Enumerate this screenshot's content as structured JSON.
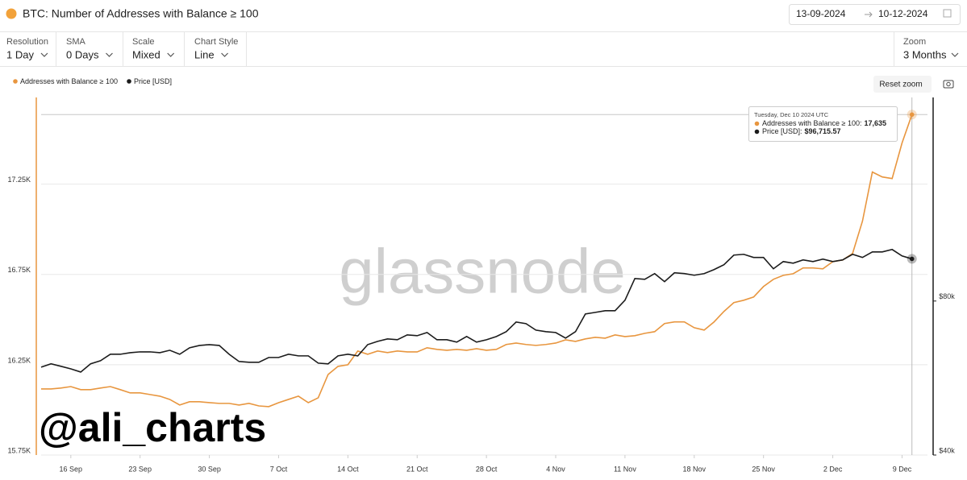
{
  "header": {
    "title": "BTC: Number of Addresses with Balance ≥ 100",
    "date_from": "13-09-2024",
    "date_to": "10-12-2024"
  },
  "controls": [
    {
      "label": "Resolution",
      "value": "1 Day"
    },
    {
      "label": "SMA",
      "value": "0 Days"
    },
    {
      "label": "Scale",
      "value": "Mixed"
    },
    {
      "label": "Chart Style",
      "value": "Line"
    }
  ],
  "zoom": {
    "label": "Zoom",
    "value": "3 Months"
  },
  "reset_zoom": "Reset zoom",
  "chart_data": {
    "type": "line",
    "x": [
      "2024-09-13",
      "2024-09-14",
      "2024-09-15",
      "2024-09-16",
      "2024-09-17",
      "2024-09-18",
      "2024-09-19",
      "2024-09-20",
      "2024-09-21",
      "2024-09-22",
      "2024-09-23",
      "2024-09-24",
      "2024-09-25",
      "2024-09-26",
      "2024-09-27",
      "2024-09-28",
      "2024-09-29",
      "2024-09-30",
      "2024-10-01",
      "2024-10-02",
      "2024-10-03",
      "2024-10-04",
      "2024-10-05",
      "2024-10-06",
      "2024-10-07",
      "2024-10-08",
      "2024-10-09",
      "2024-10-10",
      "2024-10-11",
      "2024-10-12",
      "2024-10-13",
      "2024-10-14",
      "2024-10-15",
      "2024-10-16",
      "2024-10-17",
      "2024-10-18",
      "2024-10-19",
      "2024-10-20",
      "2024-10-21",
      "2024-10-22",
      "2024-10-23",
      "2024-10-24",
      "2024-10-25",
      "2024-10-26",
      "2024-10-27",
      "2024-10-28",
      "2024-10-29",
      "2024-10-30",
      "2024-10-31",
      "2024-11-01",
      "2024-11-02",
      "2024-11-03",
      "2024-11-04",
      "2024-11-05",
      "2024-11-06",
      "2024-11-07",
      "2024-11-08",
      "2024-11-09",
      "2024-11-10",
      "2024-11-11",
      "2024-11-12",
      "2024-11-13",
      "2024-11-14",
      "2024-11-15",
      "2024-11-16",
      "2024-11-17",
      "2024-11-18",
      "2024-11-19",
      "2024-11-20",
      "2024-11-21",
      "2024-11-22",
      "2024-11-23",
      "2024-11-24",
      "2024-11-25",
      "2024-11-26",
      "2024-11-27",
      "2024-11-28",
      "2024-11-29",
      "2024-11-30",
      "2024-12-01",
      "2024-12-02",
      "2024-12-03",
      "2024-12-04",
      "2024-12-05",
      "2024-12-06",
      "2024-12-07",
      "2024-12-08",
      "2024-12-09",
      "2024-12-10"
    ],
    "xlim": [
      "2024-09-13",
      "2024-12-11"
    ],
    "xticks": [
      {
        "value": "2024-09-16",
        "label": "16 Sep"
      },
      {
        "value": "2024-09-23",
        "label": "23 Sep"
      },
      {
        "value": "2024-09-30",
        "label": "30 Sep"
      },
      {
        "value": "2024-10-07",
        "label": "7 Oct"
      },
      {
        "value": "2024-10-14",
        "label": "14 Oct"
      },
      {
        "value": "2024-10-21",
        "label": "21 Oct"
      },
      {
        "value": "2024-10-28",
        "label": "28 Oct"
      },
      {
        "value": "2024-11-04",
        "label": "4 Nov"
      },
      {
        "value": "2024-11-11",
        "label": "11 Nov"
      },
      {
        "value": "2024-11-18",
        "label": "18 Nov"
      },
      {
        "value": "2024-11-25",
        "label": "25 Nov"
      },
      {
        "value": "2024-12-02",
        "label": "2 Dec"
      },
      {
        "value": "2024-12-09",
        "label": "9 Dec"
      }
    ],
    "series": [
      {
        "name": "Addresses with Balance ≥ 100",
        "color": "#e8963f",
        "values": [
          16116,
          16116,
          16121,
          16129,
          16112,
          16112,
          16121,
          16129,
          16112,
          16094,
          16094,
          16085,
          16076,
          16058,
          16027,
          16045,
          16045,
          16040,
          16036,
          16036,
          16027,
          16036,
          16022,
          16018,
          16040,
          16058,
          16076,
          16040,
          16067,
          16196,
          16241,
          16250,
          16326,
          16308,
          16326,
          16317,
          16326,
          16321,
          16321,
          16344,
          16335,
          16330,
          16335,
          16330,
          16339,
          16330,
          16335,
          16362,
          16370,
          16362,
          16357,
          16362,
          16370,
          16388,
          16379,
          16393,
          16402,
          16397,
          16415,
          16406,
          16411,
          16424,
          16433,
          16478,
          16487,
          16487,
          16455,
          16442,
          16487,
          16545,
          16594,
          16607,
          16625,
          16683,
          16723,
          16745,
          16754,
          16786,
          16786,
          16781,
          16821,
          16830,
          16866,
          17045,
          17317,
          17290,
          17281,
          17478,
          17635
        ]
      },
      {
        "name": "Price [USD]",
        "color": "#1c1c1c",
        "axis": "y2",
        "values": [
          59400,
          60300,
          59640,
          58960,
          58120,
          60300,
          61160,
          62960,
          62960,
          63400,
          63640,
          63640,
          63400,
          64100,
          62960,
          64810,
          65510,
          65750,
          65510,
          62960,
          60940,
          60720,
          60720,
          62050,
          62050,
          62960,
          62500,
          62500,
          60490,
          60300,
          62500,
          62960,
          62500,
          65750,
          66720,
          67450,
          67210,
          68690,
          68440,
          69430,
          67210,
          67210,
          66490,
          68190,
          66490,
          67210,
          68190,
          69690,
          72780,
          72260,
          70190,
          69690,
          69430,
          67700,
          69690,
          75470,
          76020,
          76580,
          76580,
          80290,
          88530,
          88230,
          90510,
          87300,
          90840,
          90510,
          89850,
          90510,
          92170,
          94190,
          98370,
          98730,
          97330,
          97330,
          92500,
          95550,
          94860,
          96270,
          95550,
          96600,
          95550,
          96270,
          98730,
          97330,
          99790,
          99790,
          100890,
          98020,
          96715.57
        ]
      }
    ],
    "ylim": [
      15750,
      17730
    ],
    "yticks": [
      {
        "value": 15750,
        "label": "15.75K"
      },
      {
        "value": 16250,
        "label": "16.25K"
      },
      {
        "value": 16750,
        "label": "16.75K"
      },
      {
        "value": 17250,
        "label": "17.25K"
      }
    ],
    "y2lim": [
      40000,
      200000
    ],
    "y2log": true,
    "y2ticks": [
      {
        "value": 40000,
        "label": "$40k"
      },
      {
        "value": 80000,
        "label": "$80k"
      }
    ],
    "grid": true,
    "watermark": "glassnode",
    "annotation": "@ali_charts",
    "tooltip": {
      "title": "Tuesday, Dec 10 2024 UTC",
      "rows": [
        {
          "label": "Addresses with Balance ≥ 100:",
          "value": "17,635"
        },
        {
          "label": "Price [USD]:",
          "value": "$96,715.57"
        }
      ]
    }
  }
}
